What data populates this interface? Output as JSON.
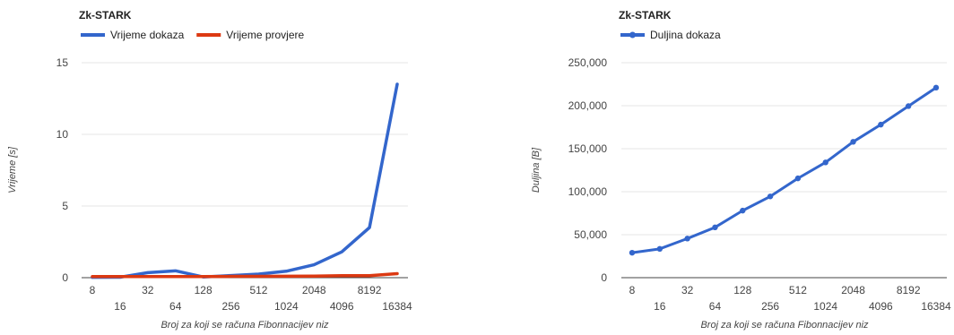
{
  "chart_data": [
    {
      "type": "line",
      "title": "Zk-STARK",
      "xlabel": "Broj za koji se računa Fibonnacijev niz",
      "ylabel": "Vrijeme [s]",
      "categories": [
        "8",
        "16",
        "32",
        "64",
        "128",
        "256",
        "512",
        "1024",
        "2048",
        "4096",
        "8192",
        "16384"
      ],
      "ylim": [
        0,
        15
      ],
      "yticks": [
        "0",
        "5",
        "10",
        "15"
      ],
      "grid": true,
      "legend": "top-left",
      "series": [
        {
          "name": "Vrijeme dokaza",
          "color": "#3366cc",
          "values": [
            0.02,
            0.03,
            0.35,
            0.48,
            0.05,
            0.15,
            0.25,
            0.45,
            0.9,
            1.8,
            3.5,
            13.5
          ]
        },
        {
          "name": "Vrijeme provjere",
          "color": "#dc3912",
          "values": [
            0.08,
            0.08,
            0.08,
            0.08,
            0.08,
            0.09,
            0.09,
            0.1,
            0.11,
            0.14,
            0.14,
            0.28
          ]
        }
      ]
    },
    {
      "type": "line",
      "title": "Zk-STARK",
      "xlabel": "Broj za koji se računa Fibonnacijev niz",
      "ylabel": "Duljina [B]",
      "categories": [
        "8",
        "16",
        "32",
        "64",
        "128",
        "256",
        "512",
        "1024",
        "2048",
        "4096",
        "8192",
        "16384"
      ],
      "ylim": [
        0,
        250000
      ],
      "yticks": [
        "0",
        "50,000",
        "100,000",
        "150,000",
        "200,000",
        "250,000"
      ],
      "grid": true,
      "legend": "top-left",
      "markers": true,
      "series": [
        {
          "name": "Duljina dokaza",
          "color": "#3366cc",
          "values": [
            29000,
            33500,
            45500,
            58500,
            78000,
            94500,
            115500,
            134000,
            158000,
            178000,
            199500,
            221000
          ]
        }
      ]
    }
  ]
}
